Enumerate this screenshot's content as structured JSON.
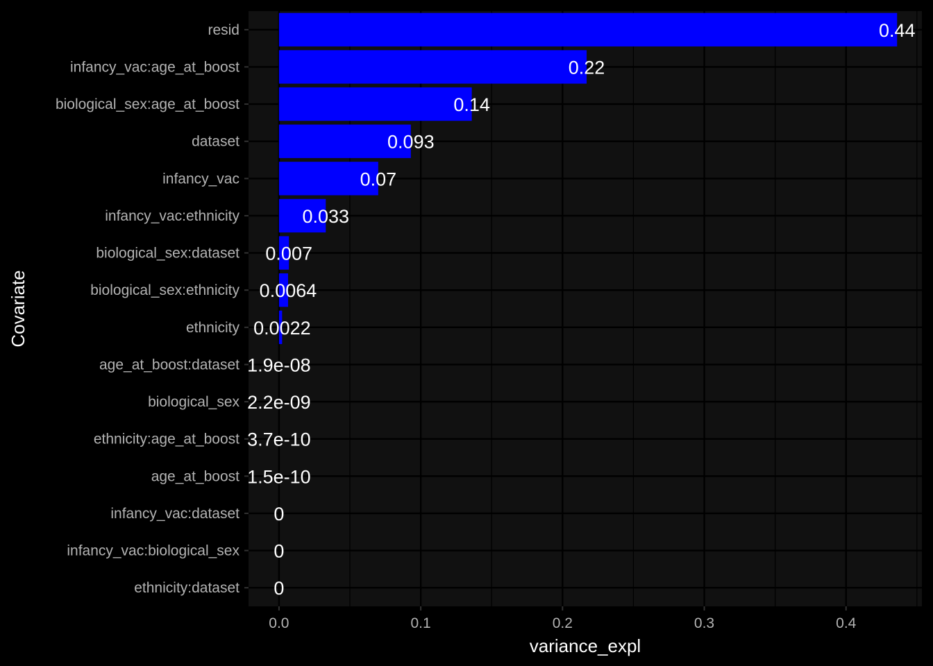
{
  "chart_data": {
    "type": "bar",
    "orientation": "horizontal",
    "title": "",
    "xlabel": "variance_expl",
    "ylabel": "Covariate",
    "xlim": [
      -0.0215,
      0.4535
    ],
    "x_ticks": [
      0.0,
      0.1,
      0.2,
      0.3,
      0.4
    ],
    "x_tick_labels": [
      "0.0",
      "0.1",
      "0.2",
      "0.3",
      "0.4"
    ],
    "grid": true,
    "legend": "none",
    "bar_color": "#0000ff",
    "panel_color": "#111111",
    "background_color": "#000000",
    "categories": [
      "resid",
      "infancy_vac:age_at_boost",
      "biological_sex:age_at_boost",
      "dataset",
      "infancy_vac",
      "infancy_vac:ethnicity",
      "biological_sex:dataset",
      "biological_sex:ethnicity",
      "ethnicity",
      "age_at_boost:dataset",
      "biological_sex",
      "ethnicity:age_at_boost",
      "age_at_boost",
      "infancy_vac:dataset",
      "infancy_vac:biological_sex",
      "ethnicity:dataset"
    ],
    "values": [
      0.436,
      0.217,
      0.136,
      0.093,
      0.07,
      0.033,
      0.007,
      0.0064,
      0.0022,
      1.9e-08,
      2.2e-09,
      3.7e-10,
      1.5e-10,
      0,
      0,
      0
    ],
    "data_labels": [
      "0.44",
      "0.22",
      "0.14",
      "0.093",
      "0.07",
      "0.033",
      "0.007",
      "0.0064",
      "0.0022",
      "1.9e-08",
      "2.2e-09",
      "3.7e-10",
      "1.5e-10",
      "0",
      "0",
      "0"
    ]
  }
}
